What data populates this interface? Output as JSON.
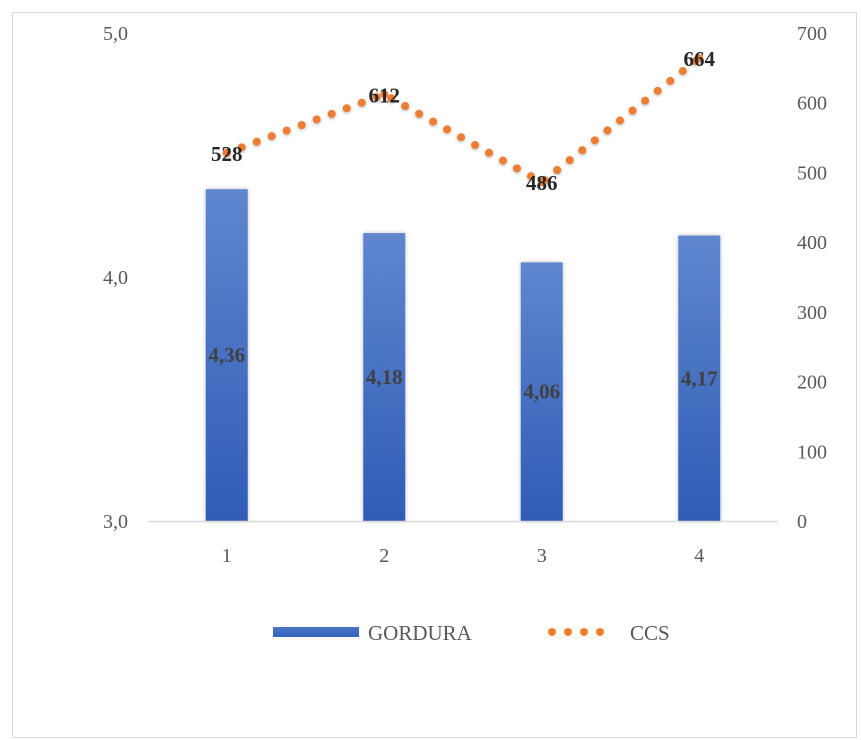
{
  "chart_data": {
    "type": "bar",
    "categories": [
      "1",
      "2",
      "3",
      "4"
    ],
    "series": [
      {
        "name": "GORDURA",
        "type": "bar",
        "axis": "left",
        "values": [
          4.36,
          4.18,
          4.06,
          4.17
        ],
        "labels": [
          "4,36",
          "4,18",
          "4,06",
          "4,17"
        ],
        "color": "#4472c4"
      },
      {
        "name": "CCS",
        "type": "line",
        "style": "dotted",
        "axis": "right",
        "values": [
          528,
          612,
          486,
          664
        ],
        "labels": [
          "528",
          "612",
          "486",
          "664"
        ],
        "color": "#ed7d31"
      }
    ],
    "y_left": {
      "min": 3.0,
      "max": 5.0,
      "ticks": [
        3.0,
        4.0,
        5.0
      ],
      "tick_labels": [
        "3,0",
        "4,0",
        "5,0"
      ]
    },
    "y_right": {
      "min": 0,
      "max": 700,
      "ticks": [
        0,
        100,
        200,
        300,
        400,
        500,
        600,
        700
      ],
      "tick_labels": [
        "0",
        "100",
        "200",
        "300",
        "400",
        "500",
        "600",
        "700"
      ]
    },
    "grid": false,
    "legend": "bottom"
  }
}
